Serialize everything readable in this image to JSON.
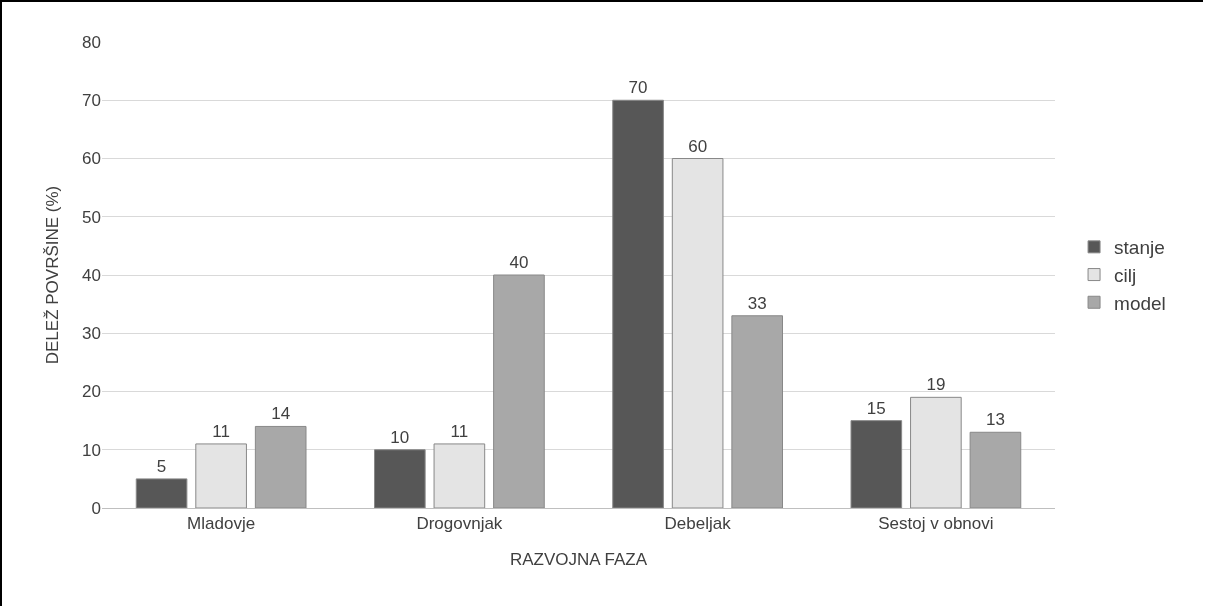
{
  "chart_data": {
    "type": "bar",
    "xlabel": "RAZVOJNA FAZA",
    "ylabel": "DELEŽ POVRŠINE (%)",
    "categories": [
      "Mladovje",
      "Drogovnjak",
      "Debeljak",
      "Sestoj v obnovi"
    ],
    "series": [
      {
        "name": "stanje",
        "color": "#575757",
        "values": [
          5,
          10,
          70,
          15
        ]
      },
      {
        "name": "cilj",
        "color": "#e4e4e4",
        "values": [
          11,
          11,
          60,
          19
        ]
      },
      {
        "name": "model",
        "color": "#a8a8a8",
        "values": [
          14,
          40,
          33,
          13
        ]
      }
    ],
    "ylim": [
      0,
      80
    ],
    "yticks": [
      0,
      10,
      20,
      30,
      40,
      50,
      60,
      70,
      80
    ],
    "grid": "y",
    "legend": "right",
    "data_labels": true
  }
}
